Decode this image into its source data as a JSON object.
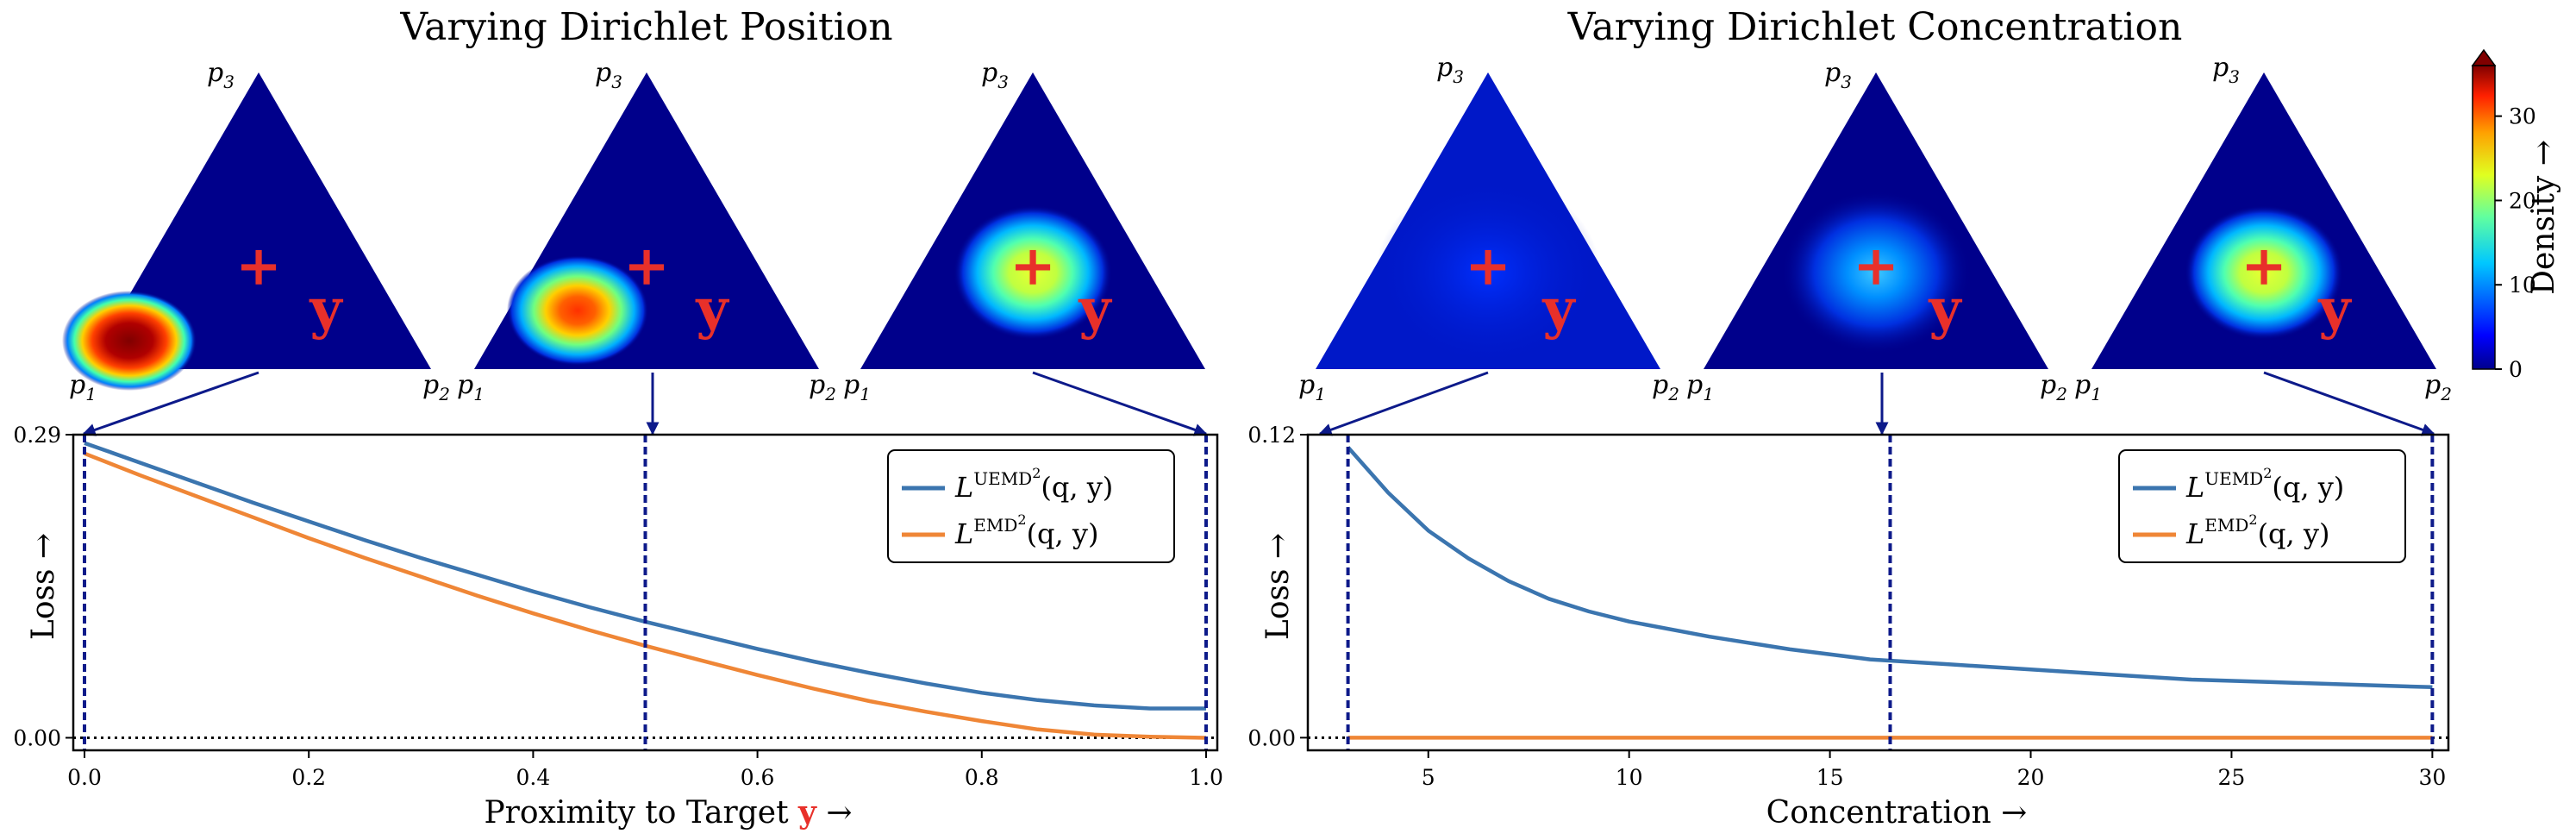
{
  "colors": {
    "blue": "#3b75af",
    "orange": "#ef8636",
    "navy": "#0d1a8a",
    "red": "#e8302a",
    "triangle_bg": "#00008b"
  },
  "left_panel": {
    "title": "Varying Dirichlet Position",
    "vertex_labels": [
      "p",
      "1",
      "p",
      "2",
      "p",
      "3"
    ],
    "target_label": "y",
    "target_marker": "+"
  },
  "right_panel": {
    "title": "Varying Dirichlet Concentration",
    "vertex_labels": [
      "p",
      "1",
      "p",
      "2",
      "p",
      "3"
    ],
    "target_label": "y",
    "target_marker": "+"
  },
  "colorbar": {
    "label": "Density",
    "arrow": "→",
    "ticks": [
      "0",
      "10",
      "20",
      "30"
    ],
    "range": [
      0,
      36
    ],
    "colormap": "jet"
  },
  "legend": {
    "uemd_base": "L",
    "uemd_sup": "UEMD",
    "uemd_sq": "2",
    "uemd_args": "(q, y)",
    "emd_base": "L",
    "emd_sup": "EMD",
    "emd_sq": "2",
    "emd_args": "(q, y)"
  },
  "chart_data": [
    {
      "type": "line",
      "title": "",
      "xlabel": "Proximity to Target y →",
      "xlabel_parts": [
        "Proximity to Target ",
        "y",
        " →"
      ],
      "ylabel": "Loss →",
      "xlim": [
        -0.01,
        1.01
      ],
      "ylim": [
        -0.012,
        0.29
      ],
      "xticks": [
        "0.0",
        "0.2",
        "0.4",
        "0.6",
        "0.8",
        "1.0"
      ],
      "yticks": [
        "0.00",
        "0.29"
      ],
      "xtick_values": [
        0.0,
        0.2,
        0.4,
        0.6,
        0.8,
        1.0
      ],
      "ytick_values": [
        0.0,
        0.29
      ],
      "markers_x": [
        0.0,
        0.5,
        1.0
      ],
      "zero_line": 0.0,
      "legend_position": "upper right",
      "series": [
        {
          "name": "UEMD",
          "x": [
            0.0,
            0.05,
            0.1,
            0.15,
            0.2,
            0.25,
            0.3,
            0.35,
            0.4,
            0.45,
            0.5,
            0.55,
            0.6,
            0.65,
            0.7,
            0.75,
            0.8,
            0.85,
            0.9,
            0.95,
            1.0
          ],
          "y": [
            0.282,
            0.263,
            0.244,
            0.225,
            0.207,
            0.189,
            0.172,
            0.156,
            0.14,
            0.125,
            0.111,
            0.098,
            0.085,
            0.073,
            0.062,
            0.052,
            0.043,
            0.036,
            0.031,
            0.028,
            0.028
          ]
        },
        {
          "name": "EMD",
          "x": [
            0.0,
            0.05,
            0.1,
            0.15,
            0.2,
            0.25,
            0.3,
            0.35,
            0.4,
            0.45,
            0.5,
            0.55,
            0.6,
            0.65,
            0.7,
            0.75,
            0.8,
            0.85,
            0.9,
            0.95,
            1.0
          ],
          "y": [
            0.272,
            0.251,
            0.231,
            0.211,
            0.191,
            0.172,
            0.154,
            0.136,
            0.119,
            0.103,
            0.088,
            0.074,
            0.06,
            0.047,
            0.035,
            0.025,
            0.016,
            0.008,
            0.003,
            0.001,
            0.0
          ]
        }
      ]
    },
    {
      "type": "line",
      "title": "",
      "xlabel": "Concentration →",
      "ylabel": "Loss →",
      "xlim": [
        2.0,
        30.4
      ],
      "ylim": [
        -0.005,
        0.12
      ],
      "xticks": [
        "5",
        "10",
        "15",
        "20",
        "25",
        "30"
      ],
      "yticks": [
        "0.00",
        "0.12"
      ],
      "xtick_values": [
        5,
        10,
        15,
        20,
        25,
        30
      ],
      "ytick_values": [
        0.0,
        0.12
      ],
      "markers_x": [
        3.0,
        16.5,
        30.0
      ],
      "zero_line": 0.0,
      "legend_position": "upper right",
      "series": [
        {
          "name": "UEMD",
          "x": [
            3,
            4,
            5,
            6,
            7,
            8,
            9,
            10,
            12,
            14,
            16,
            18,
            20,
            22,
            24,
            26,
            28,
            30
          ],
          "y": [
            0.115,
            0.097,
            0.082,
            0.071,
            0.062,
            0.055,
            0.05,
            0.046,
            0.04,
            0.035,
            0.031,
            0.029,
            0.027,
            0.025,
            0.023,
            0.022,
            0.021,
            0.02
          ]
        },
        {
          "name": "EMD",
          "x": [
            3,
            30
          ],
          "y": [
            0.0,
            0.0
          ]
        }
      ]
    }
  ]
}
